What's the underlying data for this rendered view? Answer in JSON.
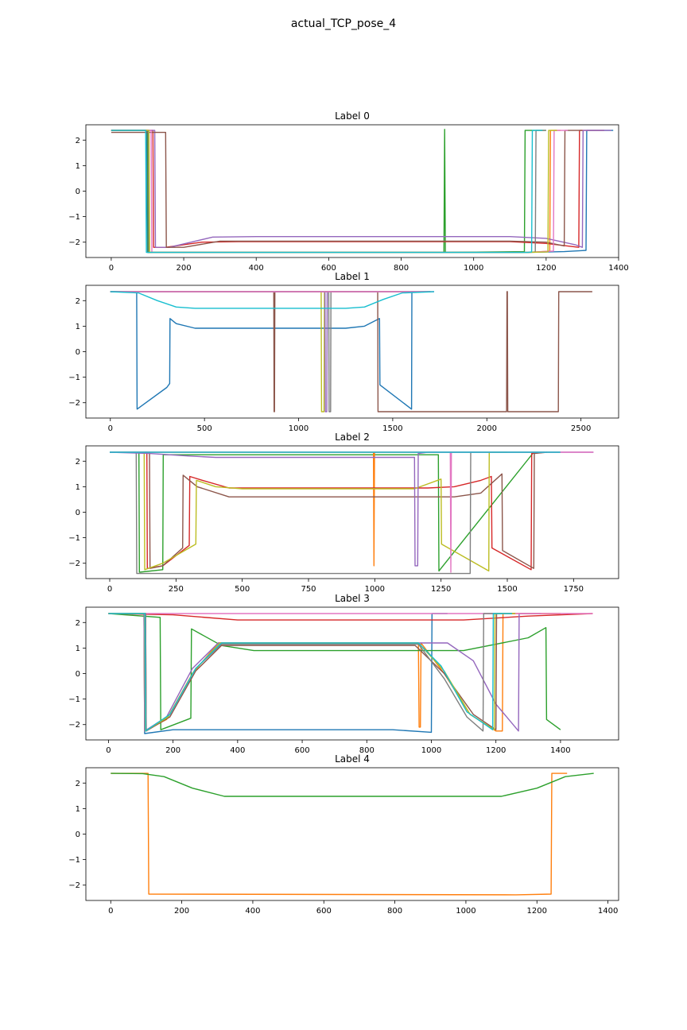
{
  "title": "actual_TCP_pose_4",
  "chart_data": [
    {
      "type": "line",
      "title": "Label 0",
      "xlim": [
        -70,
        1400
      ],
      "ylim": [
        -2.6,
        2.6
      ],
      "xticks": [
        0,
        200,
        400,
        600,
        800,
        1000,
        1200,
        1400
      ],
      "yticks": [
        -2,
        -1,
        0,
        1,
        2
      ],
      "series": [
        {
          "color": "#1f77b4",
          "x": [
            0,
            98,
            100,
            1150,
            1250,
            1300,
            1310,
            1312,
            1385
          ],
          "y": [
            2.38,
            2.38,
            -2.4,
            -2.4,
            -2.37,
            -2.33,
            -2.32,
            2.38,
            2.38
          ]
        },
        {
          "color": "#ff7f0e",
          "x": [
            0,
            100,
            102,
            1150,
            1200,
            1210,
            1212,
            1240
          ],
          "y": [
            2.38,
            2.38,
            -2.4,
            -2.4,
            -2.36,
            -2.35,
            2.38,
            2.38
          ]
        },
        {
          "color": "#2ca02c",
          "x": [
            0,
            100,
            102,
            918,
            920,
            922,
            924,
            1140,
            1142,
            1200
          ],
          "y": [
            2.38,
            2.38,
            -2.4,
            -2.4,
            2.42,
            -2.4,
            -2.4,
            -2.37,
            2.38,
            2.38
          ]
        },
        {
          "color": "#d62728",
          "x": [
            0,
            115,
            117,
            150,
            250,
            350,
            1100,
            1200,
            1290,
            1292,
            1360
          ],
          "y": [
            2.38,
            2.38,
            -2.2,
            -2.2,
            -2.0,
            -1.98,
            -1.98,
            -2.05,
            -2.2,
            2.38,
            2.38
          ]
        },
        {
          "color": "#9467bd",
          "x": [
            0,
            120,
            122,
            160,
            280,
            400,
            1100,
            1200,
            1280,
            1300,
            1302,
            1380
          ],
          "y": [
            2.38,
            2.38,
            -2.2,
            -2.2,
            -1.8,
            -1.78,
            -1.78,
            -1.85,
            -2.1,
            -2.2,
            2.38,
            2.38
          ]
        },
        {
          "color": "#8c564b",
          "x": [
            0,
            150,
            152,
            200,
            300,
            1100,
            1200,
            1250,
            1252,
            1300
          ],
          "y": [
            2.3,
            2.3,
            -2.2,
            -2.2,
            -1.96,
            -1.96,
            -2.0,
            -2.15,
            2.38,
            2.38
          ]
        },
        {
          "color": "#e377c2",
          "x": [
            0,
            110,
            112,
            1150,
            1200,
            1220,
            1222,
            1260
          ],
          "y": [
            2.38,
            2.38,
            -2.4,
            -2.4,
            -2.36,
            -2.35,
            2.38,
            2.38
          ]
        },
        {
          "color": "#7f7f7f",
          "x": [
            0,
            102,
            104,
            1150,
            1170,
            1172,
            1200
          ],
          "y": [
            2.38,
            2.38,
            -2.4,
            -2.4,
            -2.38,
            2.38,
            2.38
          ]
        },
        {
          "color": "#bcbd22",
          "x": [
            0,
            104,
            106,
            1150,
            1205,
            1207,
            1230
          ],
          "y": [
            2.38,
            2.38,
            -2.4,
            -2.4,
            -2.38,
            2.38,
            2.38
          ]
        },
        {
          "color": "#17becf",
          "x": [
            0,
            95,
            97,
            1150,
            1160,
            1162,
            1190
          ],
          "y": [
            2.38,
            2.38,
            -2.4,
            -2.4,
            -2.38,
            2.38,
            2.38
          ]
        }
      ]
    },
    {
      "type": "line",
      "title": "Label 1",
      "xlim": [
        -130,
        2700
      ],
      "ylim": [
        -2.6,
        2.6
      ],
      "xticks": [
        0,
        500,
        1000,
        1500,
        2000,
        2500
      ],
      "yticks": [
        -2,
        -1,
        0,
        1,
        2
      ],
      "series": [
        {
          "color": "#1f77b4",
          "x": [
            0,
            140,
            142,
            300,
            315,
            317,
            350,
            450,
            1250,
            1350,
            1430,
            1432,
            1600,
            1602,
            1620
          ],
          "y": [
            2.35,
            2.35,
            -2.25,
            -1.4,
            -1.25,
            1.3,
            1.1,
            0.92,
            0.92,
            1.0,
            1.3,
            -1.3,
            -2.25,
            2.35,
            2.35
          ]
        },
        {
          "color": "#8c564b",
          "x": [
            0,
            868,
            870,
            872,
            874,
            1420,
            1422,
            2105,
            2107,
            2109,
            2111,
            2380,
            2382,
            2560
          ],
          "y": [
            2.35,
            2.35,
            -2.35,
            -2.35,
            2.35,
            2.35,
            -2.35,
            -2.35,
            2.35,
            2.35,
            -2.35,
            -2.35,
            2.35,
            2.35
          ]
        },
        {
          "color": "#bcbd22",
          "x": [
            0,
            1120,
            1122,
            1135,
            1137,
            1700
          ],
          "y": [
            2.35,
            2.35,
            -2.35,
            -2.35,
            2.35,
            2.35
          ]
        },
        {
          "color": "#9467bd",
          "x": [
            0,
            1140,
            1142,
            1150,
            1152,
            1700
          ],
          "y": [
            2.35,
            2.35,
            -2.35,
            -2.35,
            2.35,
            2.35
          ]
        },
        {
          "color": "#7f7f7f",
          "x": [
            0,
            1160,
            1162,
            1170,
            1172,
            1700
          ],
          "y": [
            2.35,
            2.35,
            -2.35,
            -2.35,
            2.35,
            2.35
          ]
        },
        {
          "color": "#e377c2",
          "x": [
            0,
            1720
          ],
          "y": [
            2.35,
            2.35
          ]
        },
        {
          "color": "#17becf",
          "x": [
            0,
            150,
            250,
            350,
            450,
            1250,
            1350,
            1450,
            1550,
            1720
          ],
          "y": [
            2.35,
            2.3,
            2.0,
            1.75,
            1.7,
            1.7,
            1.75,
            2.05,
            2.3,
            2.35
          ]
        }
      ]
    },
    {
      "type": "line",
      "title": "Label 2",
      "xlim": [
        -90,
        1920
      ],
      "ylim": [
        -2.6,
        2.6
      ],
      "xticks": [
        0,
        250,
        500,
        750,
        1000,
        1250,
        1500,
        1750
      ],
      "yticks": [
        -2,
        -1,
        0,
        1,
        2
      ],
      "series": [
        {
          "color": "#2ca02c",
          "x": [
            0,
            110,
            112,
            200,
            202,
            1240,
            1242,
            1600
          ],
          "y": [
            2.35,
            2.35,
            -2.35,
            -2.25,
            2.25,
            2.25,
            -2.3,
            2.35
          ]
        },
        {
          "color": "#ff7f0e",
          "x": [
            0,
            995,
            997,
            999,
            1700
          ],
          "y": [
            2.35,
            2.35,
            -2.1,
            2.35,
            2.35
          ]
        },
        {
          "color": "#d62728",
          "x": [
            0,
            140,
            142,
            200,
            300,
            302,
            350,
            450,
            1200,
            1300,
            1400,
            1440,
            1442,
            1590,
            1592,
            1640
          ],
          "y": [
            2.35,
            2.35,
            -2.2,
            -2.1,
            -1.3,
            1.4,
            1.25,
            0.95,
            0.95,
            1.0,
            1.25,
            1.4,
            -1.4,
            -2.25,
            2.3,
            2.35
          ]
        },
        {
          "color": "#8c564b",
          "x": [
            0,
            150,
            152,
            200,
            275,
            277,
            330,
            450,
            1300,
            1400,
            1480,
            1482,
            1600,
            1602,
            1650
          ],
          "y": [
            2.35,
            2.35,
            -2.2,
            -2.1,
            -1.4,
            1.45,
            1.0,
            0.6,
            0.6,
            0.75,
            1.5,
            -1.5,
            -2.2,
            2.3,
            2.35
          ]
        },
        {
          "color": "#bcbd22",
          "x": [
            0,
            130,
            132,
            200,
            325,
            327,
            400,
            500,
            1150,
            1250,
            1252,
            1430,
            1432,
            1500
          ],
          "y": [
            2.35,
            2.35,
            -2.25,
            -2.0,
            -1.25,
            1.25,
            1.0,
            0.92,
            0.92,
            1.3,
            -1.25,
            -2.3,
            2.35,
            2.35
          ]
        },
        {
          "color": "#7f7f7f",
          "x": [
            0,
            100,
            102,
            1360,
            1362,
            1400
          ],
          "y": [
            2.35,
            2.35,
            -2.4,
            -2.4,
            2.35,
            2.35
          ]
        },
        {
          "color": "#9467bd",
          "x": [
            0,
            150,
            300,
            400,
            1150,
            1152,
            1162,
            1164,
            1200,
            1825
          ],
          "y": [
            2.35,
            2.3,
            2.2,
            2.15,
            2.15,
            -2.1,
            -2.1,
            2.3,
            2.35,
            2.35
          ]
        },
        {
          "color": "#e377c2",
          "x": [
            0,
            1285,
            1287,
            1289,
            1825
          ],
          "y": [
            2.35,
            2.35,
            -2.35,
            2.35,
            2.35
          ]
        },
        {
          "color": "#17becf",
          "x": [
            0,
            1700
          ],
          "y": [
            2.35,
            2.35
          ]
        }
      ]
    },
    {
      "type": "line",
      "title": "Label 3",
      "xlim": [
        -70,
        1580
      ],
      "ylim": [
        -2.6,
        2.6
      ],
      "xticks": [
        0,
        200,
        400,
        600,
        800,
        1000,
        1200,
        1400
      ],
      "yticks": [
        -2,
        -1,
        0,
        1,
        2
      ],
      "series": [
        {
          "color": "#1f77b4",
          "x": [
            0,
            110,
            112,
            200,
            880,
            1000,
            1002,
            1050
          ],
          "y": [
            2.35,
            2.35,
            -2.35,
            -2.2,
            -2.2,
            -2.3,
            2.35,
            2.35
          ]
        },
        {
          "color": "#ff7f0e",
          "x": [
            0,
            110,
            112,
            180,
            260,
            340,
            960,
            962,
            966,
            968,
            1040,
            1120,
            1200,
            1220,
            1222,
            1400
          ],
          "y": [
            2.35,
            2.35,
            -2.25,
            -1.8,
            0.0,
            1.2,
            1.2,
            -2.1,
            -2.1,
            1.2,
            0.0,
            -1.6,
            -2.25,
            -2.25,
            2.35,
            2.35
          ]
        },
        {
          "color": "#2ca02c",
          "x": [
            0,
            160,
            162,
            255,
            257,
            350,
            450,
            1100,
            1300,
            1355,
            1357,
            1400
          ],
          "y": [
            2.35,
            2.2,
            -2.2,
            -1.75,
            1.75,
            1.1,
            0.9,
            0.9,
            1.4,
            1.8,
            -1.8,
            -2.2
          ]
        },
        {
          "color": "#d62728",
          "x": [
            0,
            200,
            400,
            1100,
            1300,
            1500
          ],
          "y": [
            2.35,
            2.3,
            2.1,
            2.1,
            2.25,
            2.35
          ]
        },
        {
          "color": "#9467bd",
          "x": [
            0,
            110,
            112,
            180,
            260,
            340,
            1050,
            1130,
            1200,
            1270,
            1272,
            1340
          ],
          "y": [
            2.35,
            2.35,
            -2.25,
            -1.7,
            0.2,
            1.2,
            1.2,
            0.5,
            -1.2,
            -2.25,
            2.35,
            2.35
          ]
        },
        {
          "color": "#8c564b",
          "x": [
            0,
            115,
            117,
            190,
            270,
            350,
            950,
            1040,
            1130,
            1200,
            1202,
            1260
          ],
          "y": [
            2.35,
            2.35,
            -2.25,
            -1.7,
            0.1,
            1.1,
            1.1,
            0.0,
            -1.6,
            -2.2,
            2.35,
            2.35
          ]
        },
        {
          "color": "#e377c2",
          "x": [
            0,
            1500
          ],
          "y": [
            2.35,
            2.35
          ]
        },
        {
          "color": "#7f7f7f",
          "x": [
            0,
            115,
            117,
            190,
            270,
            350,
            960,
            1040,
            1110,
            1160,
            1162,
            1220
          ],
          "y": [
            2.35,
            2.35,
            -2.25,
            -1.6,
            0.2,
            1.15,
            1.15,
            -0.2,
            -1.7,
            -2.25,
            2.35,
            2.35
          ]
        },
        {
          "color": "#bcbd22",
          "x": [
            0,
            112,
            114,
            185,
            265,
            345,
            960,
            1040,
            1120,
            1195,
            1197,
            1260
          ],
          "y": [
            2.35,
            2.35,
            -2.25,
            -1.7,
            0.1,
            1.2,
            1.2,
            0.1,
            -1.6,
            -2.2,
            2.35,
            2.35
          ]
        },
        {
          "color": "#17becf",
          "x": [
            0,
            113,
            115,
            190,
            270,
            350,
            960,
            1030,
            1110,
            1190,
            1192,
            1250
          ],
          "y": [
            2.35,
            2.35,
            -2.25,
            -1.6,
            0.2,
            1.2,
            1.2,
            0.3,
            -1.5,
            -2.2,
            2.35,
            2.35
          ]
        }
      ]
    },
    {
      "type": "line",
      "title": "Label 4",
      "xlim": [
        -70,
        1430
      ],
      "ylim": [
        -2.6,
        2.6
      ],
      "xticks": [
        0,
        200,
        400,
        600,
        800,
        1000,
        1200,
        1400
      ],
      "yticks": [
        -2,
        -1,
        0,
        1,
        2
      ],
      "series": [
        {
          "color": "#ff7f0e",
          "x": [
            0,
            105,
            107,
            1140,
            1240,
            1242,
            1285
          ],
          "y": [
            2.38,
            2.38,
            -2.35,
            -2.38,
            -2.35,
            2.38,
            2.38
          ]
        },
        {
          "color": "#2ca02c",
          "x": [
            0,
            90,
            150,
            230,
            320,
            1100,
            1200,
            1280,
            1360
          ],
          "y": [
            2.38,
            2.37,
            2.25,
            1.8,
            1.48,
            1.48,
            1.8,
            2.25,
            2.38
          ]
        }
      ]
    }
  ]
}
